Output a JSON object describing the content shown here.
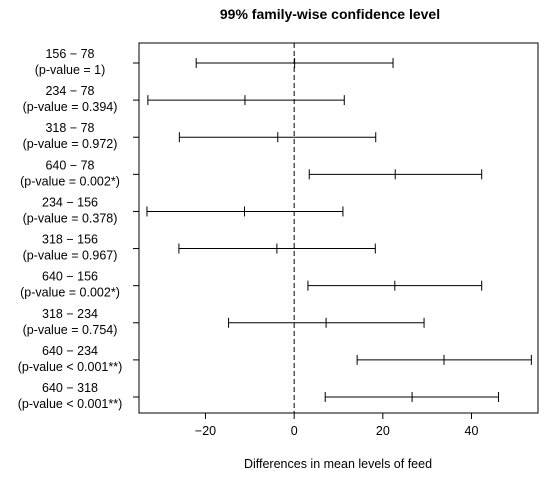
{
  "chart_data": {
    "type": "interval",
    "title": "99% family-wise confidence level",
    "xlabel": "Differences in mean levels of feed",
    "ylabel": "",
    "xlim": [
      -35,
      55
    ],
    "xticks": [
      -20,
      0,
      20,
      40
    ],
    "reference_line": 0,
    "grid": false,
    "comparisons": [
      {
        "pair": "156 − 78",
        "pvalue_label": "(p-value = 1)",
        "diff": 0.1,
        "lwr": -22.1,
        "upr": 22.3
      },
      {
        "pair": "234 − 78",
        "pvalue_label": "(p-value = 0.394)",
        "diff": -11.1,
        "lwr": -33.0,
        "upr": 11.3
      },
      {
        "pair": "318 − 78",
        "pvalue_label": "(p-value = 0.972)",
        "diff": -3.7,
        "lwr": -25.9,
        "upr": 18.4
      },
      {
        "pair": "640 − 78",
        "pvalue_label": "(p-value = 0.002*)",
        "diff": 22.8,
        "lwr": 3.4,
        "upr": 42.3
      },
      {
        "pair": "234 − 156",
        "pvalue_label": "(p-value = 0.378)",
        "diff": -11.2,
        "lwr": -33.2,
        "upr": 11.0
      },
      {
        "pair": "318 − 156",
        "pvalue_label": "(p-value = 0.967)",
        "diff": -3.9,
        "lwr": -26.0,
        "upr": 18.3
      },
      {
        "pair": "640 − 156",
        "pvalue_label": "(p-value = 0.002*)",
        "diff": 22.7,
        "lwr": 3.1,
        "upr": 42.3
      },
      {
        "pair": "318 − 234",
        "pvalue_label": "(p-value = 0.754)",
        "diff": 7.2,
        "lwr": -14.8,
        "upr": 29.3
      },
      {
        "pair": "640 − 234",
        "pvalue_label": "(p-value < 0.001**)",
        "diff": 33.8,
        "lwr": 14.2,
        "upr": 53.5
      },
      {
        "pair": "640 − 318",
        "pvalue_label": "(p-value < 0.001**)",
        "diff": 26.6,
        "lwr": 7.0,
        "upr": 46.1
      }
    ]
  }
}
